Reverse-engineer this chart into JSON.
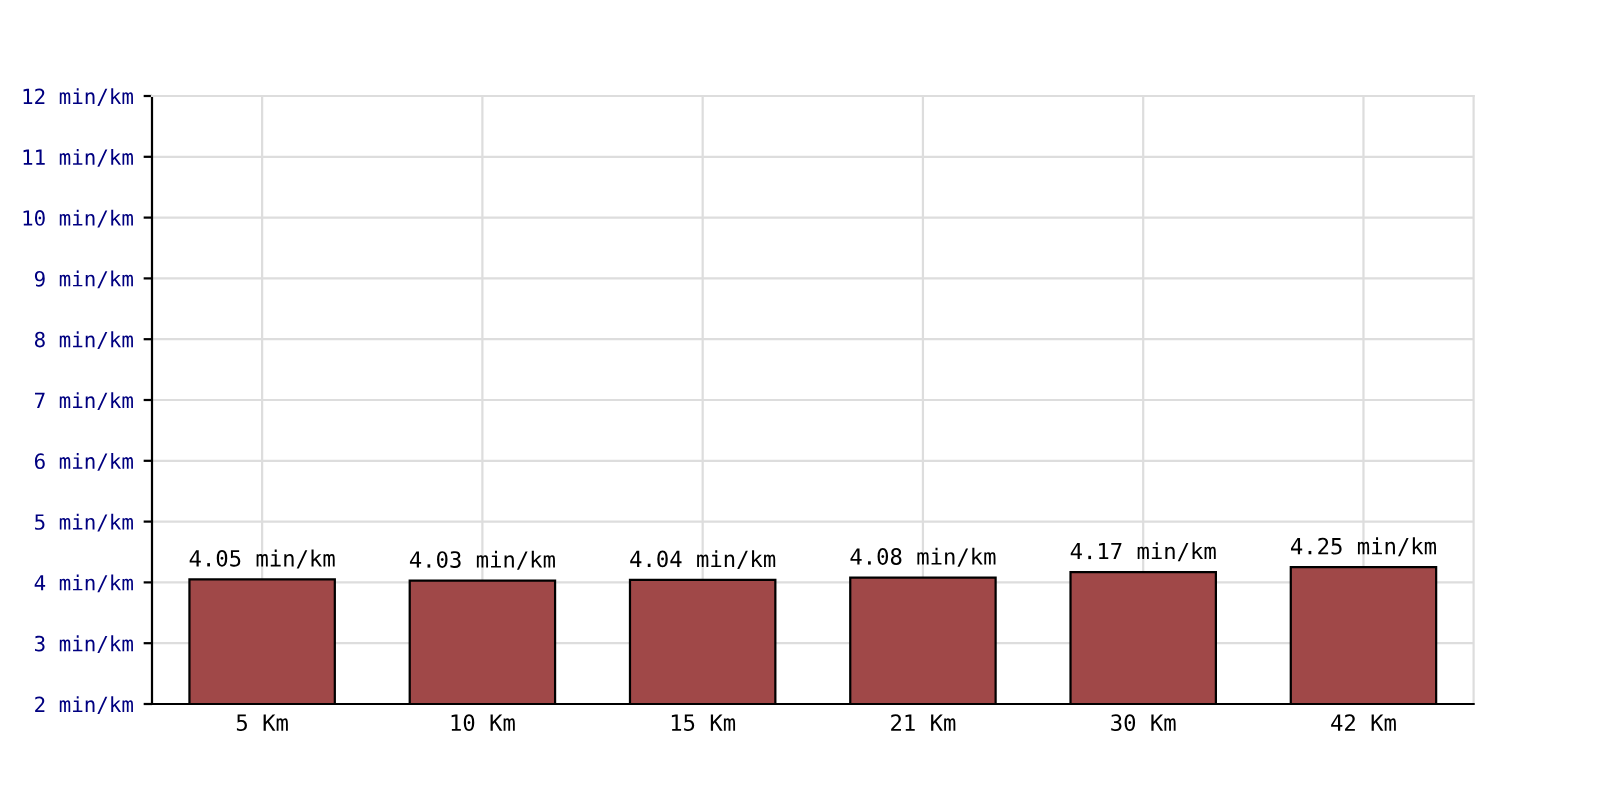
{
  "chart_data": {
    "type": "bar",
    "categories": [
      "5 Km",
      "10 Km",
      "15 Km",
      "21 Km",
      "30 Km",
      "42 Km"
    ],
    "series": [
      {
        "color": "#a04848",
        "values": [
          4.05,
          4.03,
          4.04,
          4.08,
          4.17,
          4.25
        ],
        "value_labels": [
          "4.05 min/km",
          "4.03 min/km",
          "4.04 min/km",
          "4.08 min/km",
          "4.17 min/km",
          "4.25 min/km"
        ]
      }
    ],
    "ylim": [
      2,
      12
    ],
    "yticks": [
      {
        "value": 2,
        "label": "2 min/km"
      },
      {
        "value": 3,
        "label": "3 min/km"
      },
      {
        "value": 4,
        "label": "4 min/km"
      },
      {
        "value": 5,
        "label": "5 min/km"
      },
      {
        "value": 6,
        "label": "6 min/km"
      },
      {
        "value": 7,
        "label": "7 min/km"
      },
      {
        "value": 8,
        "label": "8 min/km"
      },
      {
        "value": 9,
        "label": "9 min/km"
      },
      {
        "value": 10,
        "label": "10 min/km"
      },
      {
        "value": 11,
        "label": "11 min/km"
      },
      {
        "value": 12,
        "label": "12 min/km"
      }
    ],
    "grid": true
  }
}
